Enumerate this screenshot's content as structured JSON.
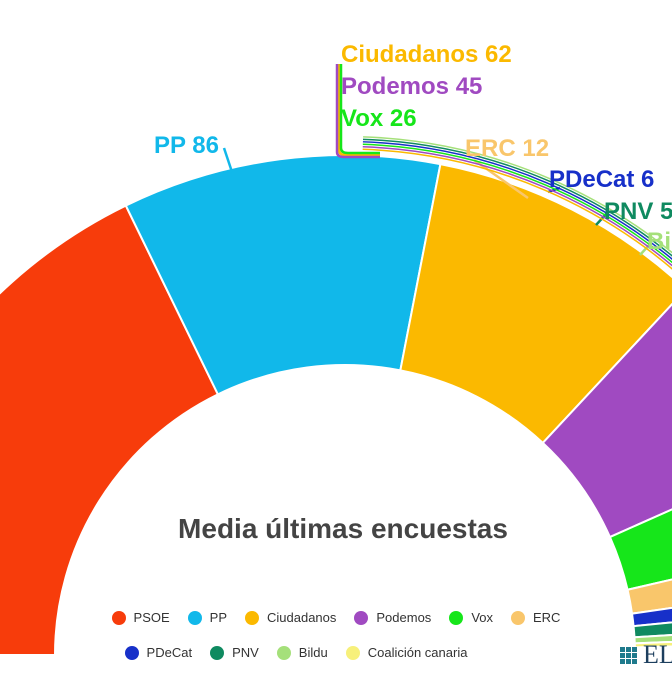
{
  "chart_data": {
    "type": "pie",
    "subtype": "semicircle-parliament",
    "title": "Media últimas encuestas",
    "series": [
      {
        "name": "PSOE",
        "value": null,
        "color": "#f73c0b"
      },
      {
        "name": "PP",
        "value": 86,
        "color": "#11b8ea"
      },
      {
        "name": "Ciudadanos",
        "value": 62,
        "color": "#fbb900"
      },
      {
        "name": "Podemos",
        "value": 45,
        "color": "#a04ac1"
      },
      {
        "name": "Vox",
        "value": 26,
        "color": "#16e61a"
      },
      {
        "name": "ERC",
        "value": 12,
        "color": "#f9c66b"
      },
      {
        "name": "PDeCat",
        "value": 6,
        "color": "#1730c9"
      },
      {
        "name": "PNV",
        "value": 5,
        "color": "#0f8a60"
      },
      {
        "name": "Bildu",
        "value": null,
        "color": "#a5e07a"
      },
      {
        "name": "Coalición canaria",
        "value": null,
        "color": "#f7f07a"
      }
    ],
    "labels": [
      {
        "text": "Ciudadanos 62",
        "color": "#fbb900"
      },
      {
        "text": "Podemos 45",
        "color": "#a04ac1"
      },
      {
        "text": "Vox 26",
        "color": "#16e61a"
      },
      {
        "text": "PP 86",
        "color": "#11b8ea"
      },
      {
        "text": "ERC 12",
        "color": "#f9c66b"
      },
      {
        "text": "PDeCat 6",
        "color": "#1730c9"
      },
      {
        "text": "PNV 5",
        "color": "#0f8a60"
      },
      {
        "text": "Bi",
        "color": "#a5e07a"
      }
    ],
    "legend_position": "bottom"
  },
  "legend": [
    "PSOE",
    "PP",
    "Ciudadanos",
    "Podemos",
    "Vox",
    "ERC",
    "PDeCat",
    "PNV",
    "Bildu",
    "Coalición canaria"
  ],
  "logo": {
    "text": "EL"
  }
}
